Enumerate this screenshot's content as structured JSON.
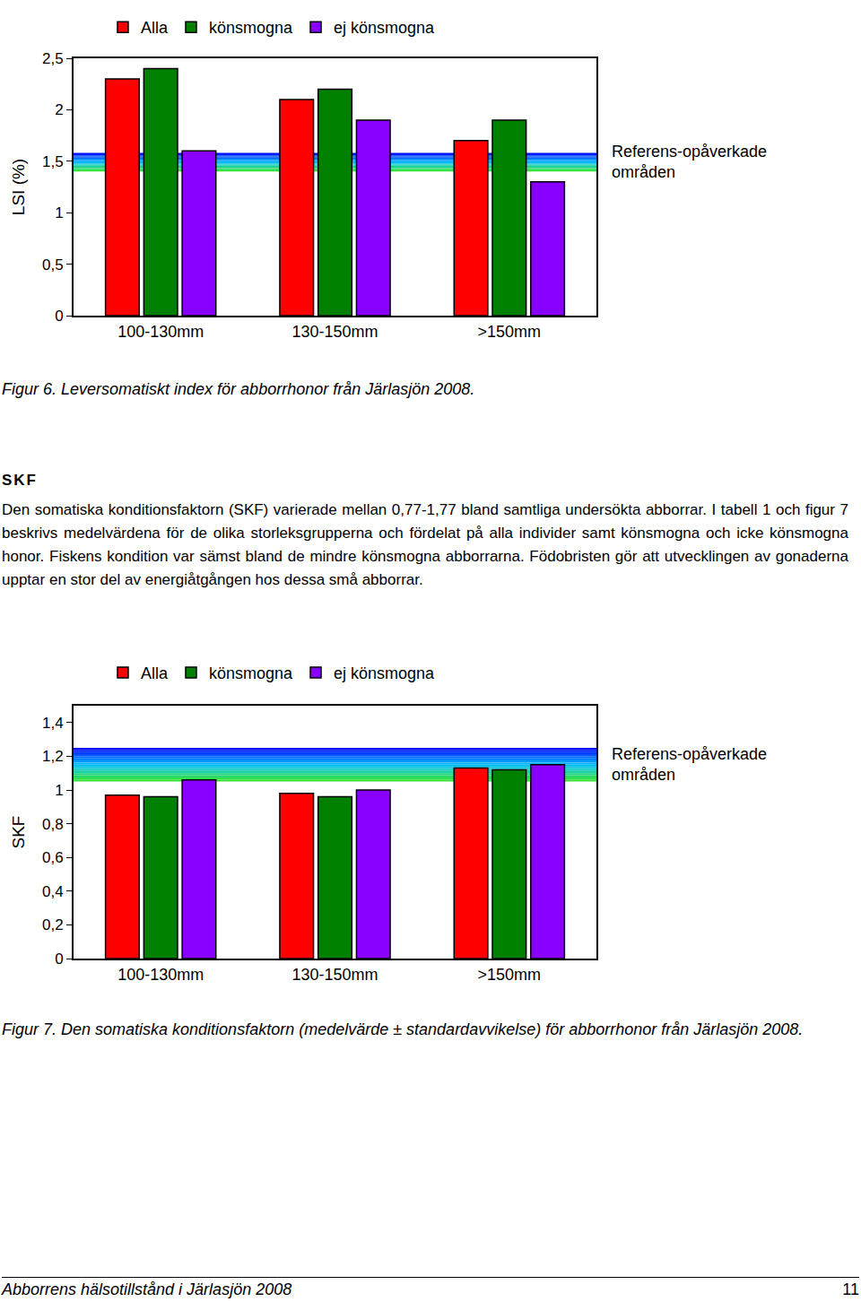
{
  "chart_data": [
    {
      "type": "bar",
      "title": "Figur 6. Leversomatiskt index för abborrhonor från Järlasjön 2008.",
      "y_label": "LSI (%)",
      "categories": [
        "100-130mm",
        "130-150mm",
        ">150mm"
      ],
      "series": [
        {
          "name": "Alla",
          "color": "#ff0000",
          "values": [
            2.3,
            2.1,
            1.7
          ]
        },
        {
          "name": "könsmogna",
          "color": "#008000",
          "values": [
            2.4,
            2.2,
            1.9
          ]
        },
        {
          "name": "ej könsmogna",
          "color": "#8800ff",
          "values": [
            1.6,
            1.9,
            1.3
          ]
        }
      ],
      "ylim": [
        0,
        2.5
      ],
      "yticks": [
        0,
        {
          "value": 0.5,
          "label": "0,5"
        },
        1,
        {
          "value": 1.5,
          "label": "1,5"
        },
        2,
        {
          "value": 2.5,
          "label": "2,5"
        }
      ],
      "reference_band": {
        "label_lines": [
          "Referens-opåverkade",
          "områden"
        ],
        "range": [
          1.4,
          1.58
        ]
      },
      "grid": false,
      "legend": "top"
    },
    {
      "type": "bar",
      "title": "Figur 7. Den somatiska konditionsfaktorn (medelvärde ± standardavvikelse) för abborrhonor från Järlasjön 2008.",
      "y_label": "SKF",
      "categories": [
        "100-130mm",
        "130-150mm",
        ">150mm"
      ],
      "series": [
        {
          "name": "Alla",
          "color": "#ff0000",
          "values": [
            0.97,
            0.98,
            1.13
          ]
        },
        {
          "name": "könsmogna",
          "color": "#008000",
          "values": [
            0.96,
            0.96,
            1.12
          ]
        },
        {
          "name": "ej könsmogna",
          "color": "#8800ff",
          "values": [
            1.06,
            1.0,
            1.15
          ]
        }
      ],
      "ylim": [
        0,
        1.5
      ],
      "yticks": [
        0,
        {
          "value": 0.2,
          "label": "0,2"
        },
        {
          "value": 0.4,
          "label": "0,4"
        },
        {
          "value": 0.6,
          "label": "0,6"
        },
        {
          "value": 0.8,
          "label": "0,8"
        },
        1,
        {
          "value": 1.2,
          "label": "1,2"
        },
        {
          "value": 1.4,
          "label": "1,4"
        }
      ],
      "reference_band": {
        "label_lines": [
          "Referens-opåverkade",
          "områden"
        ],
        "range": [
          1.05,
          1.25
        ]
      },
      "grid": false,
      "legend": "top"
    }
  ],
  "page": {
    "section_heading": "SKF",
    "paragraph": "Den somatiska konditionsfaktorn (SKF)  varierade mellan 0,77-1,77 bland samtliga undersökta abborrar. I tabell 1 och figur 7 beskrivs medelvärdena för de olika storleksgrupperna och fördelat på alla individer samt könsmogna och icke könsmogna honor. Fiskens kondition var sämst bland de mindre könsmogna abborrarna. Födobristen gör att utvecklingen av gonaderna upptar en stor del av energiåtgången hos dessa små abborrar.",
    "footer": {
      "left": "Abborrens hälsotillstånd i Järlasjön 2008",
      "page_number": 11
    }
  }
}
